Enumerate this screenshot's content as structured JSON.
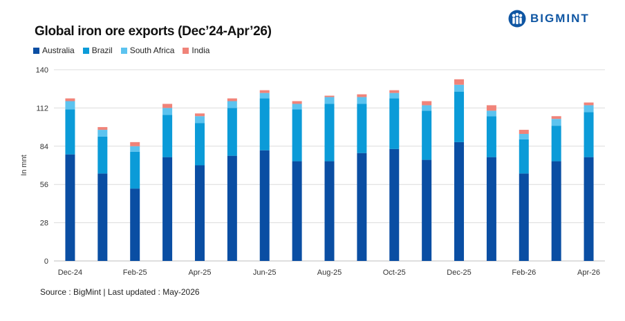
{
  "header": {
    "title": "Global iron ore exports (Dec’24-Apr’26)",
    "brand": "BIGMINT"
  },
  "footer": {
    "source": "Source : BigMint | Last updated : May-2026"
  },
  "colors": {
    "Australia": "#0a4ea3",
    "Brazil": "#0b9bd8",
    "South Africa": "#5cc3ef",
    "India": "#f08379",
    "grid": "#dcdcdc",
    "brand": "#0f56a3"
  },
  "chart_data": {
    "type": "bar",
    "stacked": true,
    "title": "Global iron ore exports (Dec’24-Apr’26)",
    "ylabel": "In mnt",
    "xlabel": "",
    "ylim": [
      0,
      140
    ],
    "yticks": [
      0,
      28,
      56,
      84,
      112,
      140
    ],
    "grid": true,
    "legend_position": "top-left",
    "categories": [
      "Dec-24",
      "Jan-25",
      "Feb-25",
      "Mar-25",
      "Apr-25",
      "May-25",
      "Jun-25",
      "Jul-25",
      "Aug-25",
      "Sep-25",
      "Oct-25",
      "Nov-25",
      "Dec-25",
      "Jan-26",
      "Feb-26",
      "Mar-26",
      "Apr-26"
    ],
    "tick_labels": [
      "Dec-24",
      "",
      "Feb-25",
      "",
      "Apr-25",
      "",
      "Jun-25",
      "",
      "Aug-25",
      "",
      "Oct-25",
      "",
      "Dec-25",
      "",
      "Feb-26",
      "",
      "Apr-26"
    ],
    "series": [
      {
        "name": "Australia",
        "values": [
          78,
          64,
          53,
          76,
          70,
          77,
          81,
          73,
          73,
          79,
          82,
          74,
          87,
          76,
          64,
          73,
          76
        ]
      },
      {
        "name": "Brazil",
        "values": [
          33,
          27,
          27,
          31,
          31,
          35,
          38,
          38,
          42,
          36,
          37,
          36,
          37,
          30,
          25,
          26,
          33
        ]
      },
      {
        "name": "South Africa",
        "values": [
          6,
          5,
          4,
          5,
          5,
          5,
          4,
          4,
          5,
          5,
          4,
          4,
          5,
          4,
          4,
          5,
          5
        ]
      },
      {
        "name": "India",
        "values": [
          2,
          2,
          3,
          3,
          2,
          2,
          2,
          2,
          1,
          2,
          2,
          3,
          4,
          4,
          3,
          2,
          2
        ]
      }
    ]
  }
}
